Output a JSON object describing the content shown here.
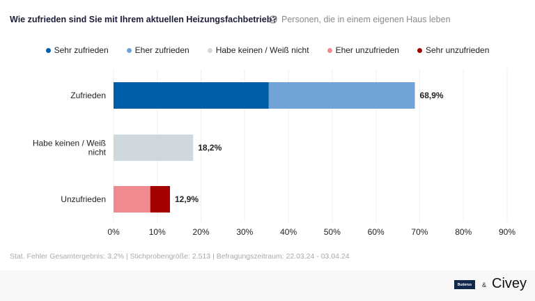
{
  "header": {
    "title": "Wie zufrieden sind Sie mit Ihrem aktuellen Heizungsfachbetrieb?",
    "subtitle": "Personen, die in einem eigenen Haus leben",
    "subtitle_icon": "target-group-icon"
  },
  "footer": {
    "note": "Stat. Fehler Gesamtergebnis: 3,2% | Stichprobengröße: 2.513 | Befragungszeitraum: 22.03.24 - 03.04.24",
    "logo_buderus": "Buderus",
    "amp": "&",
    "logo_civey": "Civey"
  },
  "chart_data": {
    "type": "bar",
    "orientation": "horizontal",
    "stacked": true,
    "categories": [
      "Zufrieden",
      "Habe keinen / Weiß nicht",
      "Unzufrieden"
    ],
    "series": [
      {
        "name": "Sehr zufrieden",
        "color": "#005ea8",
        "values": [
          35.5,
          0,
          0
        ]
      },
      {
        "name": "Eher zufrieden",
        "color": "#72a3d6",
        "values": [
          33.4,
          0,
          0
        ]
      },
      {
        "name": "Habe keinen / Weiß nicht",
        "color": "#cfd9dd",
        "values": [
          0,
          18.2,
          0
        ]
      },
      {
        "name": "Eher unzufrieden",
        "color": "#ef8b90",
        "values": [
          0,
          0,
          8.4
        ]
      },
      {
        "name": "Sehr unzufrieden",
        "color": "#a50000",
        "values": [
          0,
          0,
          4.5
        ]
      }
    ],
    "totals": [
      "68,9%",
      "18,2%",
      "12,9%"
    ],
    "xlim": [
      0,
      90
    ],
    "xticks": [
      "0%",
      "10%",
      "20%",
      "30%",
      "40%",
      "50%",
      "60%",
      "70%",
      "80%",
      "90%"
    ],
    "grid": true,
    "legend": "top"
  }
}
